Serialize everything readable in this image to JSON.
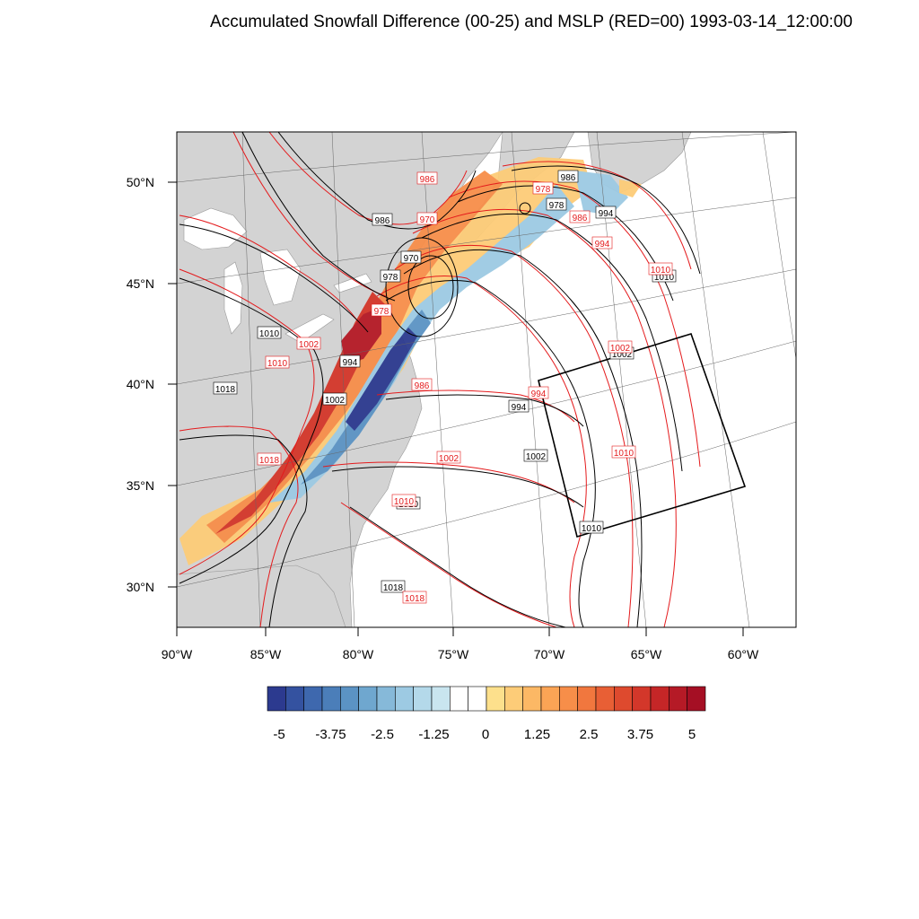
{
  "title": "Accumulated Snowfall Difference (00-25) and MSLP (RED=00) 1993-03-14_12:00:00",
  "lat_labels": [
    "50°N",
    "45°N",
    "40°N",
    "35°N",
    "30°N"
  ],
  "lon_labels": [
    "90°W",
    "85°W",
    "80°W",
    "75°W",
    "70°W",
    "65°W",
    "60°W"
  ],
  "colorbar": {
    "ticks": [
      "-5",
      "-3.75",
      "-2.5",
      "-1.25",
      "0",
      "1.25",
      "2.5",
      "3.75",
      "5"
    ],
    "colors": [
      "#2c3a8f",
      "#3452a0",
      "#3e68ae",
      "#4b7eb9",
      "#5b93c4",
      "#6fa7cf",
      "#86b9d9",
      "#9dcae3",
      "#b4d9ea",
      "#c9e5ef",
      "#ffffff",
      "#ffffff",
      "#fde08c",
      "#fdcc78",
      "#fcb865",
      "#fba455",
      "#f78e49",
      "#f1773e",
      "#e85f35",
      "#de4a2e",
      "#d3372a",
      "#c52627",
      "#b51a26",
      "#a50f24"
    ]
  },
  "black_labels": [
    {
      "text": "986"
    },
    {
      "text": "978"
    },
    {
      "text": "994"
    },
    {
      "text": "986"
    },
    {
      "text": "970"
    },
    {
      "text": "978"
    },
    {
      "text": "1010"
    },
    {
      "text": "994"
    },
    {
      "text": "1018"
    },
    {
      "text": "1002"
    },
    {
      "text": "1010"
    },
    {
      "text": "1002"
    },
    {
      "text": "994"
    },
    {
      "text": "1002"
    },
    {
      "text": "1010"
    },
    {
      "text": "1010"
    },
    {
      "text": "1018"
    }
  ],
  "red_labels": [
    {
      "text": "986"
    },
    {
      "text": "978"
    },
    {
      "text": "986"
    },
    {
      "text": "994"
    },
    {
      "text": "970"
    },
    {
      "text": "978"
    },
    {
      "text": "1002"
    },
    {
      "text": "1010"
    },
    {
      "text": "1010"
    },
    {
      "text": "1002"
    },
    {
      "text": "994"
    },
    {
      "text": "986"
    },
    {
      "text": "1018"
    },
    {
      "text": "1002"
    },
    {
      "text": "1010"
    },
    {
      "text": "1010"
    },
    {
      "text": "1018"
    }
  ],
  "colors": {
    "land": "#d3d3d3",
    "water": "#ffffff",
    "mslp_00": "#e41a1c",
    "mslp_25": "#000000"
  }
}
